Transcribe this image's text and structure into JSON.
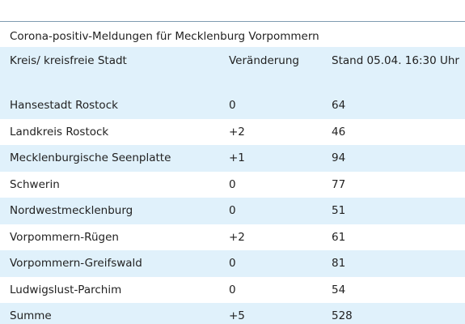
{
  "caption": "Corona-positiv-Meldungen für Mecklenburg Vorpommern",
  "header": {
    "col1": "Kreis/ kreisfreie Stadt",
    "col2": "Veränderung",
    "col3": "Stand 05.04. 16:30 Uhr"
  },
  "rows": [
    {
      "name": "Hansestadt Rostock",
      "change": "0",
      "total": "64"
    },
    {
      "name": "Landkreis Rostock",
      "change": "+2",
      "total": "46"
    },
    {
      "name": "Mecklenburgische Seenplatte",
      "change": "+1",
      "total": "94"
    },
    {
      "name": "Schwerin",
      "change": "0",
      "total": "77"
    },
    {
      "name": "Nordwestmecklenburg",
      "change": "0",
      "total": "51"
    },
    {
      "name": "Vorpommern-Rügen",
      "change": "+2",
      "total": "61"
    },
    {
      "name": "Vorpommern-Greifswald",
      "change": "0",
      "total": "81"
    },
    {
      "name": "Ludwigslust-Parchim",
      "change": "0",
      "total": "54"
    }
  ],
  "sum": {
    "name": "Summe",
    "change": "+5",
    "total": "528"
  },
  "colors": {
    "stripe": "#e0f1fb",
    "rule": "#7f9bb0"
  }
}
